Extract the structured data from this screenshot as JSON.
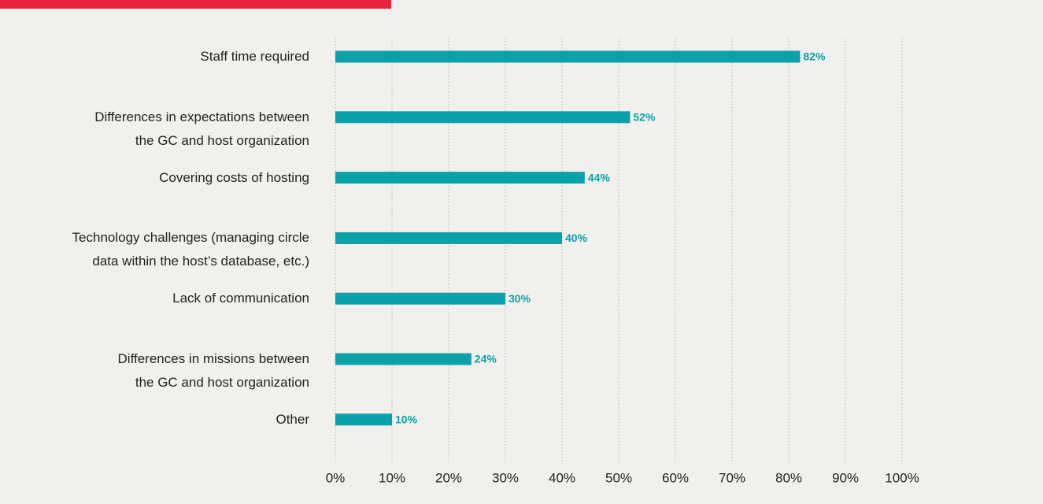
{
  "chart_data": {
    "type": "bar",
    "orientation": "horizontal",
    "categories": [
      "Staff time required",
      "Differences in expectations between\nthe GC and host organization",
      "Covering costs of hosting",
      "Technology challenges (managing circle\ndata within the host’s database, etc.)",
      "Lack of communication",
      "Differences in missions between\nthe GC and host organization",
      "Other"
    ],
    "values": [
      82,
      52,
      44,
      40,
      30,
      24,
      10
    ],
    "value_labels": [
      "82%",
      "52%",
      "44%",
      "40%",
      "30%",
      "24%",
      "10%"
    ],
    "color": "#0aa1a9",
    "xlim": [
      0,
      100
    ],
    "xticks": [
      {
        "value": 0,
        "label": "0%"
      },
      {
        "value": 10,
        "label": "10%"
      },
      {
        "value": 20,
        "label": "20%"
      },
      {
        "value": 30,
        "label": "30%"
      },
      {
        "value": 40,
        "label": "40%"
      },
      {
        "value": 50,
        "label": "50%"
      },
      {
        "value": 60,
        "label": "60%"
      },
      {
        "value": 70,
        "label": "70%"
      },
      {
        "value": 80,
        "label": "80%"
      },
      {
        "value": 90,
        "label": "90%"
      },
      {
        "value": 100,
        "label": "100%"
      }
    ],
    "grid": true
  }
}
